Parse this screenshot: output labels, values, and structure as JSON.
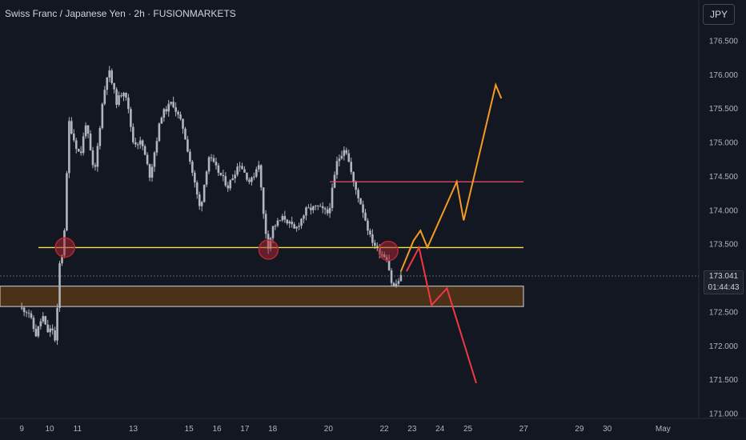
{
  "header": {
    "title": "Swiss Franc / Japanese Yen · 2h · FUSIONMARKETS",
    "currency": "JPY"
  },
  "last_price": {
    "price": "173.041",
    "countdown": "01:44:43"
  },
  "colors": {
    "background": "#131722",
    "candle": "#b2b5be",
    "support_line": "#f5e14a",
    "resistance_line": "#f24d6b",
    "demand_zone_fill": "#4a3118",
    "demand_zone_border": "#d1d4dc",
    "bullish_path": "#f49b22",
    "bearish_path": "#f23645",
    "touch_marker": "#b22833"
  },
  "chart_data": {
    "type": "candlestick",
    "title": "Swiss Franc / Japanese Yen · 2h · FUSIONMARKETS",
    "xlabel": "",
    "ylabel": "",
    "ylim": [
      171.0,
      176.8
    ],
    "x_tick_labels": [
      "9",
      "10",
      "11",
      "13",
      "15",
      "16",
      "17",
      "18",
      "20",
      "22",
      "23",
      "24",
      "25",
      "27",
      "29",
      "30",
      "May"
    ],
    "y_tick_labels": [
      "176.500",
      "176.000",
      "175.500",
      "175.000",
      "174.500",
      "174.000",
      "173.500",
      "173.000",
      "172.500",
      "172.000",
      "171.500",
      "171.000"
    ],
    "y_ticks": [
      176.5,
      176.0,
      175.5,
      175.0,
      174.5,
      174.0,
      173.5,
      173.0,
      172.5,
      172.0,
      171.5,
      171.0
    ],
    "grid": false,
    "price_path": [
      {
        "x": 9.0,
        "y": 172.55
      },
      {
        "x": 9.25,
        "y": 172.5
      },
      {
        "x": 9.5,
        "y": 172.15
      },
      {
        "x": 9.75,
        "y": 172.45
      },
      {
        "x": 9.9,
        "y": 172.2
      },
      {
        "x": 10.1,
        "y": 172.25
      },
      {
        "x": 10.25,
        "y": 171.95
      },
      {
        "x": 10.3,
        "y": 173.1
      },
      {
        "x": 10.5,
        "y": 173.45
      },
      {
        "x": 10.7,
        "y": 175.3
      },
      {
        "x": 10.9,
        "y": 175.0
      },
      {
        "x": 11.1,
        "y": 174.8
      },
      {
        "x": 11.3,
        "y": 175.3
      },
      {
        "x": 11.6,
        "y": 174.5
      },
      {
        "x": 11.9,
        "y": 175.6
      },
      {
        "x": 12.1,
        "y": 176.1
      },
      {
        "x": 12.4,
        "y": 175.6
      },
      {
        "x": 12.7,
        "y": 175.8
      },
      {
        "x": 13.0,
        "y": 175.0
      },
      {
        "x": 13.3,
        "y": 175.0
      },
      {
        "x": 13.6,
        "y": 174.5
      },
      {
        "x": 14.0,
        "y": 175.4
      },
      {
        "x": 14.4,
        "y": 175.6
      },
      {
        "x": 14.8,
        "y": 175.2
      },
      {
        "x": 15.1,
        "y": 174.6
      },
      {
        "x": 15.4,
        "y": 174.0
      },
      {
        "x": 15.7,
        "y": 174.8
      },
      {
        "x": 16.0,
        "y": 174.6
      },
      {
        "x": 16.4,
        "y": 174.35
      },
      {
        "x": 16.8,
        "y": 174.7
      },
      {
        "x": 17.2,
        "y": 174.4
      },
      {
        "x": 17.5,
        "y": 174.7
      },
      {
        "x": 17.7,
        "y": 173.8
      },
      {
        "x": 17.85,
        "y": 173.45
      },
      {
        "x": 18.0,
        "y": 173.75
      },
      {
        "x": 18.4,
        "y": 173.9
      },
      {
        "x": 18.8,
        "y": 173.7
      },
      {
        "x": 19.2,
        "y": 174.0
      },
      {
        "x": 19.6,
        "y": 174.05
      },
      {
        "x": 20.0,
        "y": 173.95
      },
      {
        "x": 20.3,
        "y": 174.7
      },
      {
        "x": 20.6,
        "y": 174.95
      },
      {
        "x": 20.9,
        "y": 174.4
      },
      {
        "x": 21.2,
        "y": 174.05
      },
      {
        "x": 21.5,
        "y": 173.6
      },
      {
        "x": 21.8,
        "y": 173.4
      },
      {
        "x": 22.1,
        "y": 173.3
      },
      {
        "x": 22.3,
        "y": 172.85
      },
      {
        "x": 22.5,
        "y": 172.95
      },
      {
        "x": 22.65,
        "y": 173.04
      }
    ],
    "annotations": {
      "support_line": 173.45,
      "resistance_line": 174.42,
      "demand_zone": [
        172.58,
        172.88
      ],
      "touch_markers": [
        {
          "x": 10.55,
          "y": 173.45
        },
        {
          "x": 17.85,
          "y": 173.42
        },
        {
          "x": 22.15,
          "y": 173.4
        }
      ],
      "bullish_projection": [
        {
          "x": 22.6,
          "y": 173.1
        },
        {
          "x": 23.05,
          "y": 173.55
        },
        {
          "x": 23.3,
          "y": 173.7
        },
        {
          "x": 23.55,
          "y": 173.45
        },
        {
          "x": 24.6,
          "y": 174.42
        },
        {
          "x": 24.85,
          "y": 173.85
        },
        {
          "x": 26.0,
          "y": 175.85
        },
        {
          "x": 26.2,
          "y": 175.65
        }
      ],
      "bearish_projection": [
        {
          "x": 22.8,
          "y": 173.1
        },
        {
          "x": 23.25,
          "y": 173.45
        },
        {
          "x": 23.7,
          "y": 172.6
        },
        {
          "x": 24.25,
          "y": 172.85
        },
        {
          "x": 25.3,
          "y": 171.45
        }
      ]
    }
  }
}
